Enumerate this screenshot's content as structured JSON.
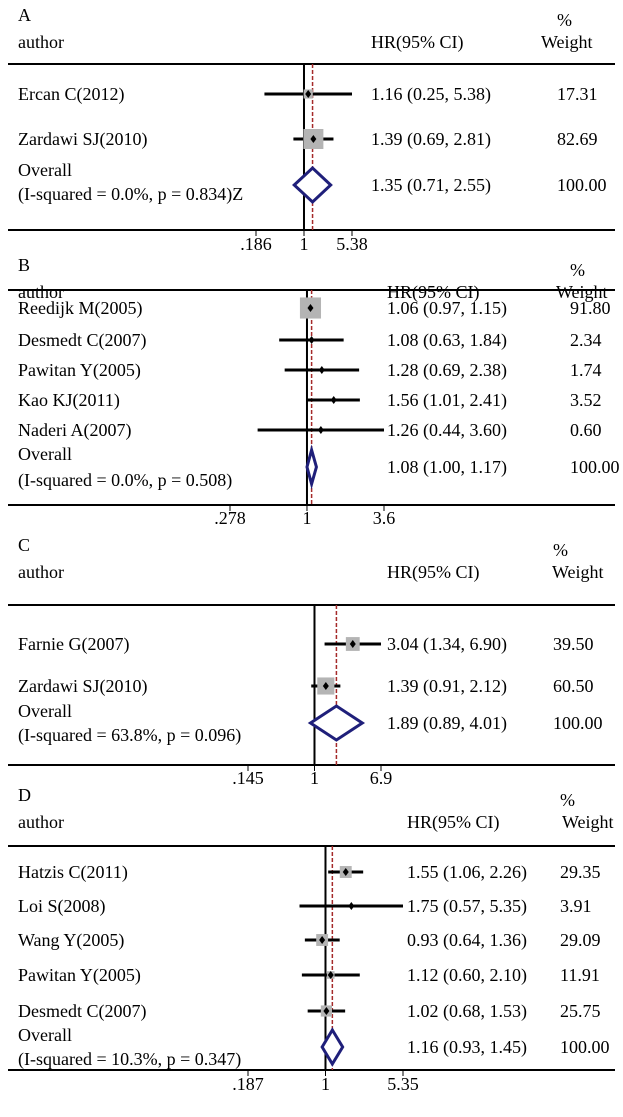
{
  "chart_data": [
    {
      "type": "forest",
      "panel_label": "A",
      "header": {
        "author": "author",
        "hr": "HR(95% CI)",
        "weight_pct": "%",
        "weight": "Weight"
      },
      "ticks": [
        0.186,
        1,
        5.38
      ],
      "tick_labels": [
        ".186",
        "1",
        "5.38"
      ],
      "overall_line": 1.35,
      "studies": [
        {
          "author": "Ercan C(2012)",
          "hr": 1.16,
          "lo": 0.25,
          "hi": 5.38,
          "hr_text": "1.16 (0.25, 5.38)",
          "weight": 17.31,
          "weight_text": "17.31"
        },
        {
          "author": "Zardawi SJ(2010)",
          "hr": 1.39,
          "lo": 0.69,
          "hi": 2.81,
          "hr_text": "1.39 (0.69, 2.81)",
          "weight": 82.69,
          "weight_text": "82.69"
        }
      ],
      "overall": {
        "label1": "Overall",
        "label2": "(I-squared = 0.0%, p = 0.834)Z",
        "hr": 1.35,
        "lo": 0.71,
        "hi": 2.55,
        "hr_text": "1.35 (0.71, 2.55)",
        "weight_text": "100.00"
      }
    },
    {
      "type": "forest",
      "panel_label": "B",
      "header": {
        "author": "author",
        "hr": "HR(95% CI)",
        "weight_pct": "%",
        "weight": "Weight"
      },
      "ticks": [
        0.278,
        1,
        3.6
      ],
      "tick_labels": [
        ".278",
        "1",
        "3.6"
      ],
      "overall_line": 1.08,
      "studies": [
        {
          "author": "Reedijk M(2005)",
          "hr": 1.06,
          "lo": 0.97,
          "hi": 1.15,
          "hr_text": "1.06 (0.97, 1.15)",
          "weight": 91.8,
          "weight_text": "91.80"
        },
        {
          "author": "Desmedt C(2007)",
          "hr": 1.08,
          "lo": 0.63,
          "hi": 1.84,
          "hr_text": "1.08 (0.63, 1.84)",
          "weight": 2.34,
          "weight_text": "2.34"
        },
        {
          "author": "Pawitan Y(2005)",
          "hr": 1.28,
          "lo": 0.69,
          "hi": 2.38,
          "hr_text": "1.28 (0.69, 2.38)",
          "weight": 1.74,
          "weight_text": "1.74"
        },
        {
          "author": "Kao KJ(2011)",
          "hr": 1.56,
          "lo": 1.01,
          "hi": 2.41,
          "hr_text": "1.56 (1.01, 2.41)",
          "weight": 3.52,
          "weight_text": "3.52"
        },
        {
          "author": "Naderi A(2007)",
          "hr": 1.26,
          "lo": 0.44,
          "hi": 3.6,
          "hr_text": "1.26 (0.44, 3.60)",
          "weight": 0.6,
          "weight_text": "0.60"
        }
      ],
      "overall": {
        "label1": "Overall",
        "label2": "(I-squared = 0.0%, p = 0.508)",
        "hr": 1.08,
        "lo": 1.0,
        "hi": 1.17,
        "hr_text": "1.08 (1.00, 1.17)",
        "weight_text": "100.00"
      }
    },
    {
      "type": "forest",
      "panel_label": "C",
      "header": {
        "author": "author",
        "hr": "HR(95% CI)",
        "weight_pct": "%",
        "weight": "Weight"
      },
      "ticks": [
        0.145,
        1,
        6.9
      ],
      "tick_labels": [
        ".145",
        "1",
        "6.9"
      ],
      "overall_line": 1.89,
      "studies": [
        {
          "author": "Farnie G(2007)",
          "hr": 3.04,
          "lo": 1.34,
          "hi": 6.9,
          "hr_text": "3.04 (1.34, 6.90)",
          "weight": 39.5,
          "weight_text": "39.50"
        },
        {
          "author": "Zardawi SJ(2010)",
          "hr": 1.39,
          "lo": 0.91,
          "hi": 2.12,
          "hr_text": "1.39 (0.91, 2.12)",
          "weight": 60.5,
          "weight_text": "60.50"
        }
      ],
      "overall": {
        "label1": "Overall",
        "label2": "(I-squared = 63.8%, p = 0.096)",
        "hr": 1.89,
        "lo": 0.89,
        "hi": 4.01,
        "hr_text": "1.89 (0.89, 4.01)",
        "weight_text": "100.00"
      }
    },
    {
      "type": "forest",
      "panel_label": "D",
      "header": {
        "author": "author",
        "hr": "HR(95% CI)",
        "weight_pct": "%",
        "weight": "Weight"
      },
      "ticks": [
        0.187,
        1,
        5.35
      ],
      "tick_labels": [
        ".187",
        "1",
        "5.35"
      ],
      "overall_line": 1.16,
      "studies": [
        {
          "author": "Hatzis C(2011)",
          "hr": 1.55,
          "lo": 1.06,
          "hi": 2.26,
          "hr_text": "1.55 (1.06, 2.26)",
          "weight": 29.35,
          "weight_text": "29.35"
        },
        {
          "author": "Loi S(2008)",
          "hr": 1.75,
          "lo": 0.57,
          "hi": 5.35,
          "hr_text": "1.75 (0.57, 5.35)",
          "weight": 3.91,
          "weight_text": "3.91"
        },
        {
          "author": "Wang Y(2005)",
          "hr": 0.93,
          "lo": 0.64,
          "hi": 1.36,
          "hr_text": "0.93 (0.64, 1.36)",
          "weight": 29.09,
          "weight_text": "29.09"
        },
        {
          "author": "Pawitan Y(2005)",
          "hr": 1.12,
          "lo": 0.6,
          "hi": 2.1,
          "hr_text": "1.12 (0.60, 2.10)",
          "weight": 11.91,
          "weight_text": "11.91"
        },
        {
          "author": "Desmedt C(2007)",
          "hr": 1.02,
          "lo": 0.68,
          "hi": 1.53,
          "hr_text": "1.02 (0.68, 1.53)",
          "weight": 25.75,
          "weight_text": "25.75"
        }
      ],
      "overall": {
        "label1": "Overall",
        "label2": "(I-squared = 10.3%, p = 0.347)",
        "hr": 1.16,
        "lo": 0.93,
        "hi": 1.45,
        "hr_text": "1.16 (0.93, 1.45)",
        "weight_text": "100.00"
      }
    }
  ],
  "colors": {
    "diamond": "#1f1f7a",
    "reference_line": "#a52a2a",
    "weight_box": "#b4b4b4",
    "line": "#000000"
  }
}
